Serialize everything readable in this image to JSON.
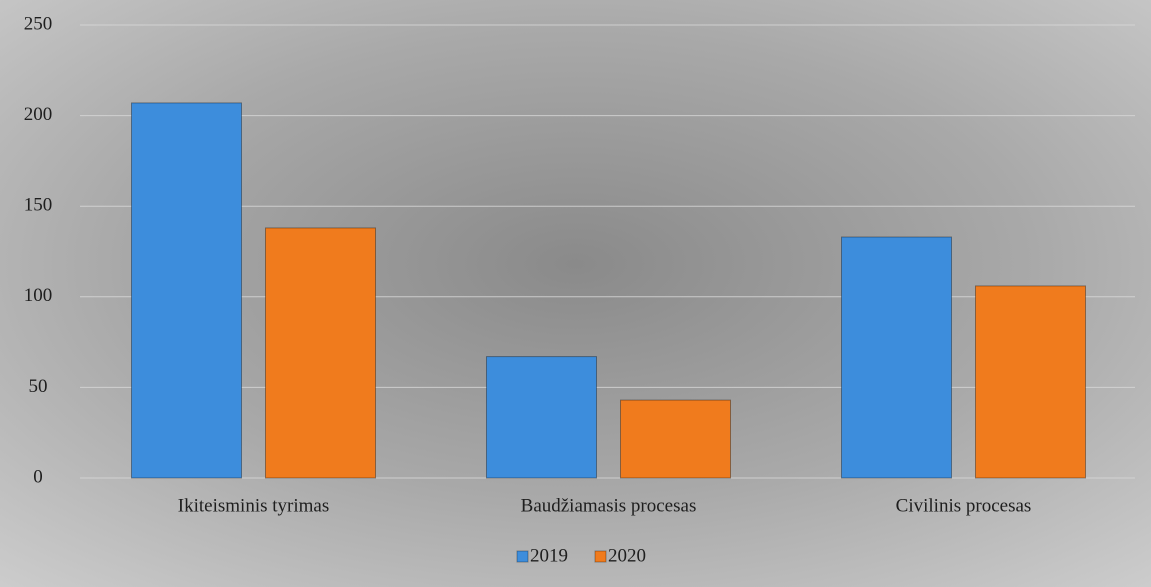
{
  "chart_data": {
    "type": "bar",
    "categories": [
      "Ikiteisminis tyrimas",
      "Baudžiamasis procesas",
      "Civilinis procesas"
    ],
    "series": [
      {
        "name": "2019",
        "color": "#3d8ddc",
        "values": [
          207,
          67,
          133
        ]
      },
      {
        "name": "2020",
        "color": "#f07b1d",
        "values": [
          138,
          43,
          106
        ]
      }
    ],
    "ylim": [
      0,
      250
    ],
    "yticks": [
      0,
      50,
      100,
      150,
      200,
      250
    ],
    "grid": true,
    "legend": "bottom"
  }
}
